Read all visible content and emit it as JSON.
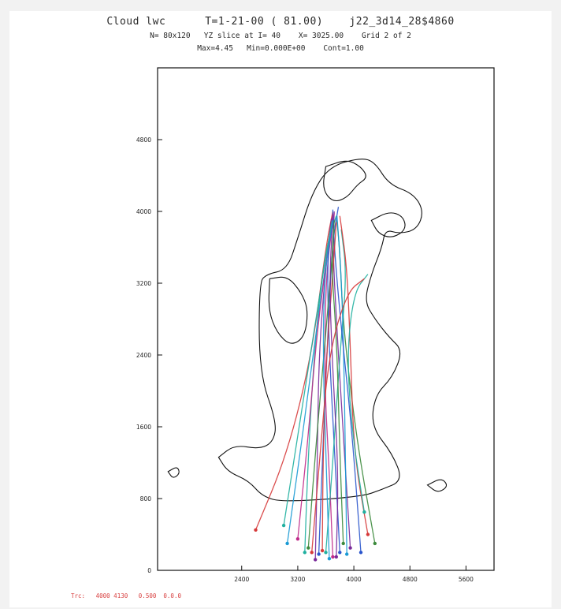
{
  "header": {
    "line1": "Cloud lwc      T=1-21-00 ( 81.00)    j22_3d14_28$4860",
    "line2": "N= 80x120   YZ slice at I= 40    X= 3025.00    Grid 2 of 2",
    "line3": "Max=4.45   Min=0.000E+00    Cont=1.00"
  },
  "footer": {
    "text": "Trc:   4000 4130   0.500  0.0.0"
  },
  "chart_data": {
    "type": "line",
    "title": "Cloud lwc      T=1-21-00 ( 81.00)    j22_3d14_28$4860",
    "xlabel": "",
    "ylabel": "",
    "xlim": [
      1200,
      6000
    ],
    "ylim": [
      0,
      5600
    ],
    "x_ticks": [
      {
        "value": 2400,
        "label": "2400"
      },
      {
        "value": 3200,
        "label": "3200"
      },
      {
        "value": 4000,
        "label": "4000"
      },
      {
        "value": 4800,
        "label": "4800"
      },
      {
        "value": 5600,
        "label": "5600"
      }
    ],
    "y_ticks": [
      {
        "value": 0,
        "label": "0"
      },
      {
        "value": 800,
        "label": "800"
      },
      {
        "value": 1600,
        "label": "1600"
      },
      {
        "value": 2400,
        "label": "2400"
      },
      {
        "value": 3200,
        "label": "3200"
      },
      {
        "value": 4000,
        "label": "4000"
      },
      {
        "value": 4800,
        "label": "4800"
      }
    ],
    "contours": [
      {
        "name": "outer",
        "points": [
          [
            2070,
            1260
          ],
          [
            2300,
            1400
          ],
          [
            2650,
            1350
          ],
          [
            2850,
            1430
          ],
          [
            2900,
            1650
          ],
          [
            2650,
            2200
          ],
          [
            2650,
            3200
          ],
          [
            2750,
            3300
          ],
          [
            3050,
            3350
          ],
          [
            3200,
            3700
          ],
          [
            3400,
            4200
          ],
          [
            3650,
            4500
          ],
          [
            4100,
            4600
          ],
          [
            4300,
            4550
          ],
          [
            4500,
            4300
          ],
          [
            4850,
            4200
          ],
          [
            5000,
            4000
          ],
          [
            4900,
            3800
          ],
          [
            4650,
            3750
          ],
          [
            4450,
            3800
          ],
          [
            4400,
            3600
          ],
          [
            4250,
            3300
          ],
          [
            4150,
            3000
          ],
          [
            4300,
            2800
          ],
          [
            4500,
            2600
          ],
          [
            4700,
            2450
          ],
          [
            4550,
            2150
          ],
          [
            4300,
            1950
          ],
          [
            4250,
            1600
          ],
          [
            4550,
            1300
          ],
          [
            4700,
            1000
          ],
          [
            4400,
            900
          ],
          [
            4100,
            820
          ],
          [
            3000,
            760
          ],
          [
            2700,
            820
          ],
          [
            2500,
            1000
          ],
          [
            2200,
            1100
          ],
          [
            2070,
            1260
          ]
        ]
      },
      {
        "name": "core-1",
        "points": [
          [
            2800,
            3250
          ],
          [
            3050,
            3280
          ],
          [
            3250,
            3100
          ],
          [
            3350,
            2900
          ],
          [
            3300,
            2600
          ],
          [
            3100,
            2500
          ],
          [
            2900,
            2650
          ],
          [
            2780,
            2900
          ],
          [
            2800,
            3250
          ]
        ]
      },
      {
        "name": "core-2",
        "points": [
          [
            3600,
            4500
          ],
          [
            3900,
            4580
          ],
          [
            4100,
            4500
          ],
          [
            4200,
            4380
          ],
          [
            4050,
            4300
          ],
          [
            3900,
            4150
          ],
          [
            3700,
            4100
          ],
          [
            3550,
            4250
          ],
          [
            3600,
            4500
          ]
        ]
      },
      {
        "name": "side-right",
        "points": [
          [
            4250,
            3900
          ],
          [
            4500,
            4000
          ],
          [
            4700,
            3950
          ],
          [
            4750,
            3800
          ],
          [
            4550,
            3700
          ],
          [
            4350,
            3750
          ],
          [
            4250,
            3900
          ]
        ]
      },
      {
        "name": "blob-left",
        "points": [
          [
            1350,
            1100
          ],
          [
            1480,
            1160
          ],
          [
            1520,
            1080
          ],
          [
            1420,
            1020
          ],
          [
            1350,
            1100
          ]
        ]
      },
      {
        "name": "blob-right",
        "points": [
          [
            5050,
            950
          ],
          [
            5250,
            1030
          ],
          [
            5350,
            940
          ],
          [
            5200,
            860
          ],
          [
            5050,
            950
          ]
        ]
      }
    ],
    "series": [
      {
        "color": "#d63a3a",
        "points": [
          [
            2600,
            450
          ],
          [
            3050,
            1300
          ],
          [
            3400,
            2400
          ],
          [
            3600,
            3600
          ],
          [
            3700,
            4000
          ]
        ]
      },
      {
        "color": "#2a55cc",
        "points": [
          [
            3500,
            180
          ],
          [
            3550,
            1200
          ],
          [
            3620,
            2500
          ],
          [
            3700,
            3700
          ],
          [
            3780,
            4050
          ]
        ]
      },
      {
        "color": "#20b0a0",
        "points": [
          [
            3300,
            200
          ],
          [
            3350,
            1300
          ],
          [
            3450,
            2600
          ],
          [
            3600,
            3600
          ],
          [
            3750,
            3950
          ]
        ]
      },
      {
        "color": "#7a2a9a",
        "points": [
          [
            3950,
            250
          ],
          [
            3850,
            1500
          ],
          [
            3750,
            2800
          ],
          [
            3700,
            3600
          ],
          [
            3720,
            4000
          ]
        ]
      },
      {
        "color": "#3c8a3c",
        "points": [
          [
            4300,
            300
          ],
          [
            4050,
            1400
          ],
          [
            3850,
            2700
          ],
          [
            3800,
            3550
          ],
          [
            3760,
            3900
          ]
        ]
      },
      {
        "color": "#1a9ad4",
        "points": [
          [
            3050,
            300
          ],
          [
            3250,
            1400
          ],
          [
            3400,
            2300
          ],
          [
            3560,
            3200
          ],
          [
            3680,
            3850
          ]
        ]
      },
      {
        "color": "#c02a8a",
        "points": [
          [
            3700,
            150
          ],
          [
            3650,
            1100
          ],
          [
            3580,
            2100
          ],
          [
            3600,
            3300
          ],
          [
            3720,
            3980
          ]
        ]
      },
      {
        "color": "#2a55cc",
        "points": [
          [
            3800,
            200
          ],
          [
            3720,
            1400
          ],
          [
            3640,
            2600
          ],
          [
            3620,
            3500
          ],
          [
            3700,
            3900
          ]
        ]
      },
      {
        "color": "#20b0a0",
        "points": [
          [
            3600,
            200
          ],
          [
            3700,
            1200
          ],
          [
            3800,
            2400
          ],
          [
            3900,
            3300
          ],
          [
            3820,
            3800
          ]
        ]
      },
      {
        "color": "#d63a3a",
        "points": [
          [
            4200,
            400
          ],
          [
            4000,
            1300
          ],
          [
            3950,
            2500
          ],
          [
            3900,
            3400
          ],
          [
            3800,
            3950
          ]
        ]
      },
      {
        "color": "#7a2a9a",
        "points": [
          [
            3450,
            120
          ],
          [
            3480,
            1200
          ],
          [
            3500,
            2400
          ],
          [
            3600,
            3400
          ],
          [
            3680,
            3920
          ]
        ]
      },
      {
        "color": "#3c8a3c",
        "points": [
          [
            3350,
            250
          ],
          [
            3450,
            1300
          ],
          [
            3550,
            2200
          ],
          [
            3650,
            3100
          ],
          [
            3720,
            3800
          ]
        ]
      },
      {
        "color": "#1a9ad4",
        "points": [
          [
            3900,
            180
          ],
          [
            3880,
            1200
          ],
          [
            3860,
            2300
          ],
          [
            3820,
            3300
          ],
          [
            3760,
            3950
          ]
        ]
      },
      {
        "color": "#c02a8a",
        "points": [
          [
            3200,
            350
          ],
          [
            3350,
            1500
          ],
          [
            3480,
            2700
          ],
          [
            3620,
            3500
          ],
          [
            3700,
            3980
          ]
        ]
      },
      {
        "color": "#2a55cc",
        "points": [
          [
            4100,
            200
          ],
          [
            3980,
            1500
          ],
          [
            3820,
            2700
          ],
          [
            3720,
            3600
          ],
          [
            3700,
            4020
          ]
        ]
      },
      {
        "color": "#20b0a0",
        "points": [
          [
            3000,
            500
          ],
          [
            3200,
            1500
          ],
          [
            3400,
            2500
          ],
          [
            3580,
            3400
          ],
          [
            3690,
            3900
          ]
        ]
      },
      {
        "color": "#d63a3a",
        "points": [
          [
            3550,
            220
          ],
          [
            3560,
            1200
          ],
          [
            3600,
            2300
          ],
          [
            3700,
            3300
          ],
          [
            3750,
            3880
          ]
        ]
      },
      {
        "color": "#7a2a9a",
        "points": [
          [
            3750,
            150
          ],
          [
            3780,
            1100
          ],
          [
            3700,
            2200
          ],
          [
            3650,
            3200
          ],
          [
            3700,
            3960
          ]
        ]
      },
      {
        "color": "#3c8a3c",
        "points": [
          [
            3850,
            300
          ],
          [
            3800,
            1300
          ],
          [
            3760,
            2500
          ],
          [
            3680,
            3400
          ],
          [
            3720,
            3900
          ]
        ]
      },
      {
        "color": "#1a9ad4",
        "points": [
          [
            3650,
            130
          ],
          [
            3600,
            1300
          ],
          [
            3560,
            2400
          ],
          [
            3580,
            3300
          ],
          [
            3700,
            3900
          ]
        ]
      },
      {
        "color": "#20b0a0",
        "points": [
          [
            4150,
            650
          ],
          [
            3980,
            1500
          ],
          [
            3900,
            2400
          ],
          [
            4000,
            3100
          ],
          [
            4200,
            3300
          ]
        ]
      },
      {
        "color": "#d63a3a",
        "points": [
          [
            3400,
            200
          ],
          [
            3520,
            1300
          ],
          [
            3640,
            2400
          ],
          [
            3900,
            3100
          ],
          [
            4150,
            3250
          ]
        ]
      }
    ]
  }
}
